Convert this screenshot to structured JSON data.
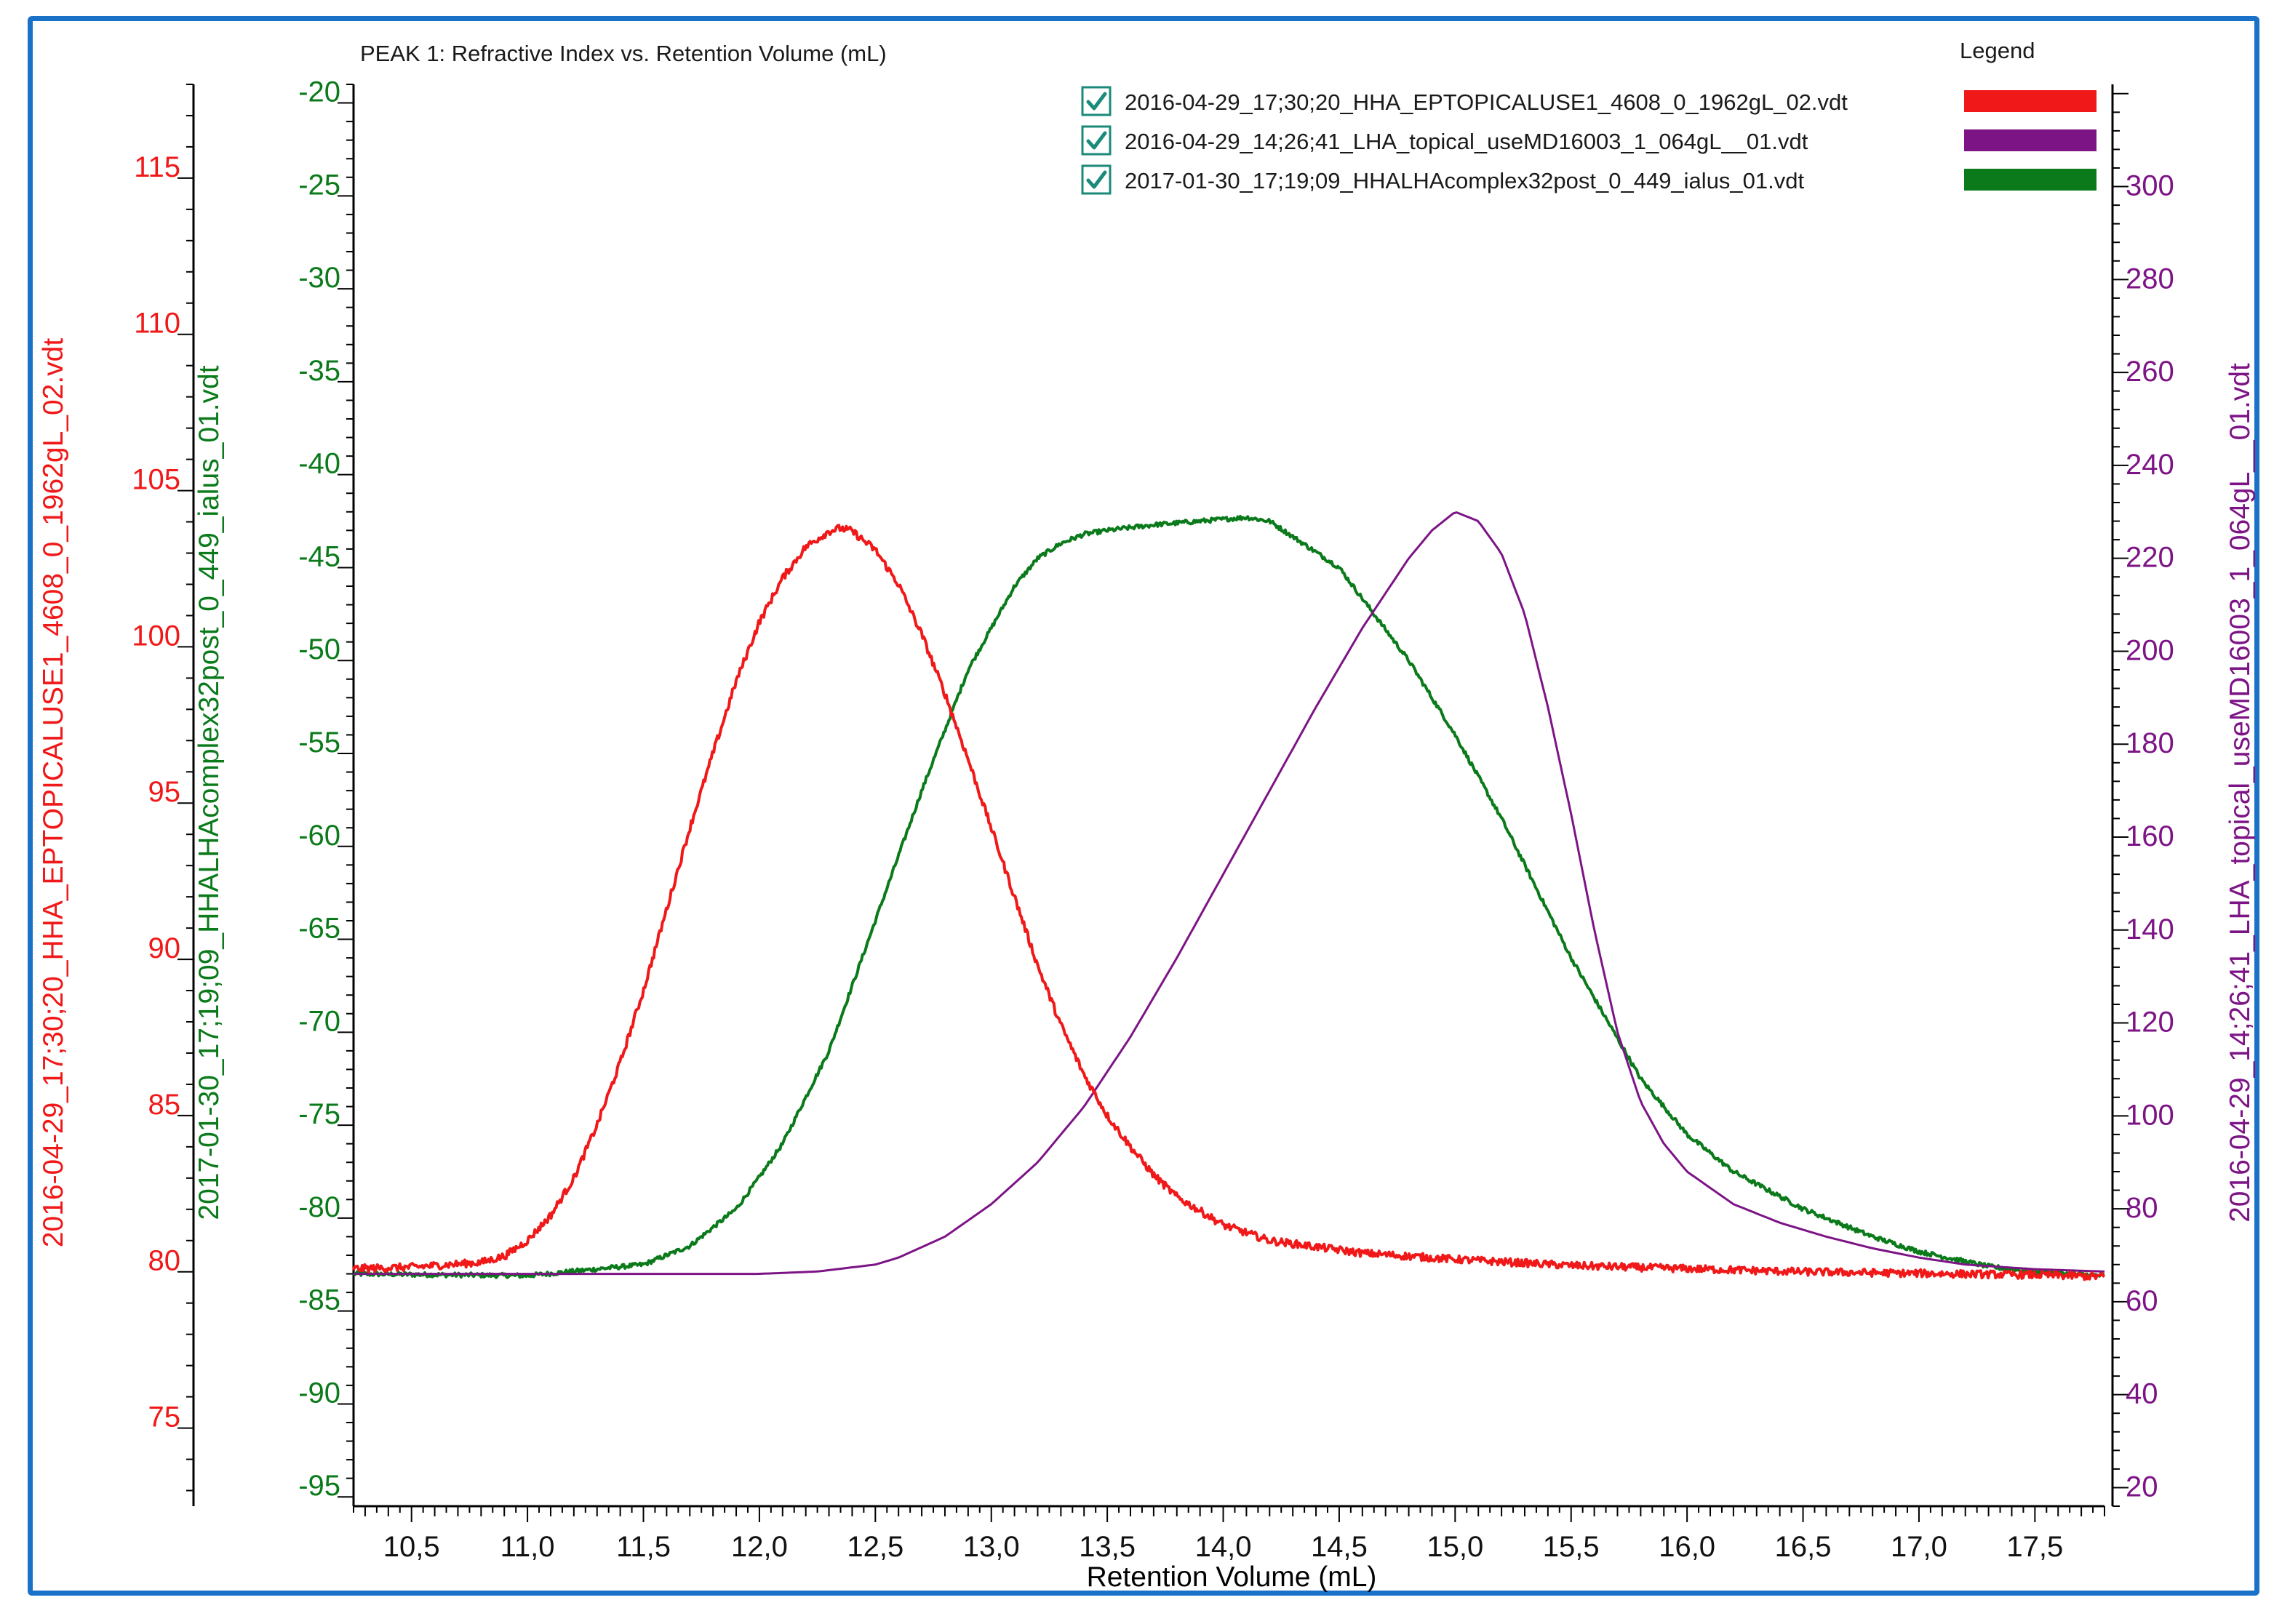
{
  "chart_data": {
    "type": "line",
    "title": "PEAK 1: Refractive Index vs. Retention Volume (mL)",
    "legend_title": "Legend",
    "legend_position": "top-right",
    "grid": false,
    "xlabel": "Retention Volume (mL)",
    "xlim": [
      10.25,
      17.8
    ],
    "x_ticks": [
      "10,5",
      "11,0",
      "11,5",
      "12,0",
      "12,5",
      "13,0",
      "13,5",
      "14,0",
      "14,5",
      "15,0",
      "15,5",
      "16,0",
      "16,5",
      "17,0",
      "17,5"
    ],
    "x_tick_values": [
      10.5,
      11.0,
      11.5,
      12.0,
      12.5,
      13.0,
      13.5,
      14.0,
      14.5,
      15.0,
      15.5,
      16.0,
      16.5,
      17.0,
      17.5
    ],
    "colors": {
      "red": "#f01818",
      "purple": "#7d1486",
      "green": "#0a7a1a",
      "frame": "#1a72c8",
      "checkbox": "#1a8a7a"
    },
    "axes": {
      "red": {
        "label": "2016-04-29_17;30;20_HHA_EPTOPICALUSE1_4608_0_1962gL_02.vdt",
        "ylim": [
          72.5,
          118
        ],
        "ticks": [
          75,
          80,
          85,
          90,
          95,
          100,
          105,
          110,
          115
        ]
      },
      "green": {
        "label": "2017-01-30_17;19;09_HHALHAcomplex32post_0_449_ialus_01.vdt",
        "ylim": [
          -95.5,
          -19
        ],
        "ticks": [
          -20,
          -25,
          -30,
          -35,
          -40,
          -45,
          -50,
          -55,
          -60,
          -65,
          -70,
          -75,
          -80,
          -85,
          -90,
          -95
        ]
      },
      "purple": {
        "label": "2016-04-29_14;26;41_LHA_topical_useMD16003_1_064gL__01.vdt",
        "ylim": [
          16,
          322
        ],
        "ticks": [
          20,
          40,
          60,
          80,
          100,
          120,
          140,
          160,
          180,
          200,
          220,
          240,
          260,
          280,
          300
        ]
      }
    },
    "series": [
      {
        "name": "2016-04-29_17;30;20_HHA_EPTOPICALUSE1_4608_0_1962gL_02.vdt",
        "axis": "red",
        "color": "#f01818",
        "noise": 0.12,
        "x": [
          10.25,
          10.5,
          10.8,
          10.9,
          11.0,
          11.1,
          11.2,
          11.3,
          11.4,
          11.5,
          11.6,
          11.7,
          11.8,
          11.9,
          12.0,
          12.1,
          12.2,
          12.3,
          12.35,
          12.4,
          12.5,
          12.6,
          12.7,
          12.8,
          12.9,
          13.0,
          13.1,
          13.2,
          13.3,
          13.4,
          13.5,
          13.6,
          13.7,
          13.8,
          14.0,
          14.2,
          14.4,
          14.6,
          14.8,
          15.0,
          15.5,
          16.0,
          16.5,
          17.0,
          17.5,
          17.8
        ],
        "y": [
          80.1,
          80.15,
          80.3,
          80.5,
          81.0,
          81.8,
          83.0,
          84.7,
          86.7,
          89.0,
          91.6,
          94.2,
          96.6,
          98.9,
          100.8,
          102.2,
          103.2,
          103.7,
          103.8,
          103.7,
          103.1,
          102.0,
          100.4,
          98.5,
          96.4,
          94.2,
          92.0,
          89.8,
          87.9,
          86.3,
          85.0,
          84.0,
          83.1,
          82.4,
          81.5,
          81.0,
          80.8,
          80.6,
          80.5,
          80.4,
          80.2,
          80.1,
          80.0,
          79.95,
          79.9,
          79.85
        ]
      },
      {
        "name": "2016-04-29_14;26;41_LHA_topical_useMD16003_1_064gL__01.vdt",
        "axis": "purple",
        "color": "#7d1486",
        "noise": 0,
        "x": [
          10.25,
          11.0,
          11.5,
          12.0,
          12.25,
          12.5,
          12.6,
          12.8,
          13.0,
          13.2,
          13.4,
          13.6,
          13.8,
          14.0,
          14.2,
          14.4,
          14.6,
          14.8,
          14.9,
          15.0,
          15.1,
          15.2,
          15.3,
          15.4,
          15.5,
          15.6,
          15.7,
          15.8,
          15.9,
          16.0,
          16.2,
          16.4,
          16.6,
          16.8,
          17.0,
          17.2,
          17.5,
          17.8
        ],
        "y": [
          66,
          66,
          66,
          66,
          66.5,
          68,
          69.5,
          74,
          81,
          90,
          102,
          117,
          134,
          152,
          170,
          188,
          205,
          220,
          226,
          230,
          228,
          221,
          208,
          188,
          165,
          140,
          118,
          103,
          94,
          88,
          81,
          77,
          74,
          71.5,
          69.5,
          68,
          67,
          66.5
        ]
      },
      {
        "name": "2017-01-30_17;19;09_HHALHAcomplex32post_0_449_ialus_01.vdt",
        "axis": "green",
        "color": "#0a7a1a",
        "noise": 0.12,
        "x": [
          10.25,
          11.0,
          11.5,
          11.7,
          11.9,
          12.0,
          12.1,
          12.3,
          12.5,
          12.7,
          12.9,
          13.1,
          13.2,
          13.3,
          13.4,
          13.5,
          13.7,
          14.0,
          14.1,
          14.2,
          14.5,
          14.8,
          15.0,
          15.2,
          15.5,
          15.8,
          16.0,
          16.2,
          16.5,
          16.8,
          17.0,
          17.3,
          17.5,
          17.8
        ],
        "y": [
          -83.0,
          -83.1,
          -82.5,
          -81.5,
          -79.5,
          -77.8,
          -76.0,
          -71.0,
          -64.0,
          -57.0,
          -50.5,
          -46.0,
          -44.5,
          -43.7,
          -43.2,
          -43.0,
          -42.7,
          -42.4,
          -42.3,
          -42.5,
          -45.0,
          -50.0,
          -54.0,
          -58.5,
          -66.0,
          -72.5,
          -75.5,
          -77.5,
          -79.5,
          -81.0,
          -81.8,
          -82.6,
          -82.9,
          -83.1
        ]
      }
    ]
  }
}
